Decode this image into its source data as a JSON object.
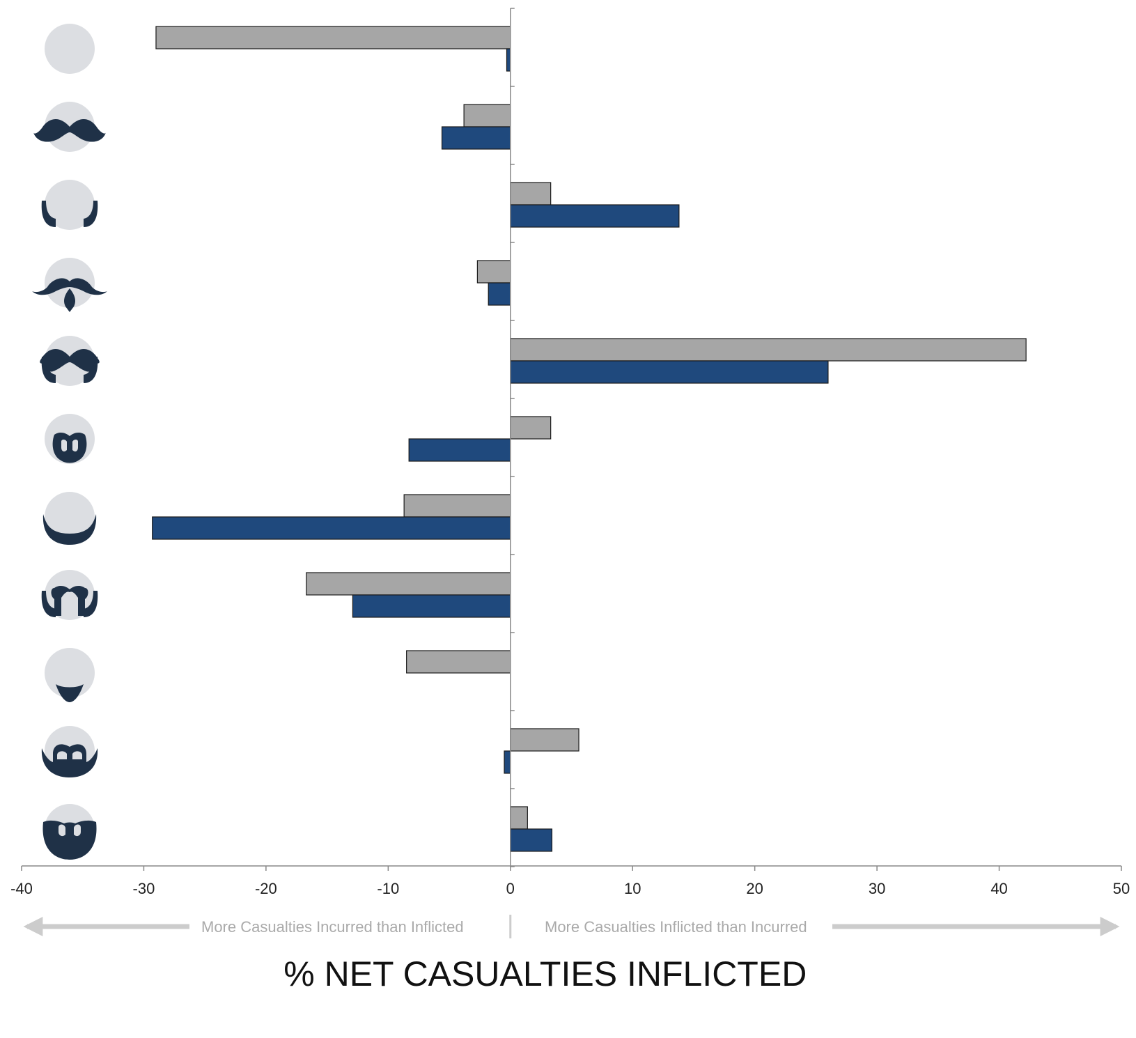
{
  "chart_data": {
    "type": "bar",
    "orientation": "horizontal",
    "categories": [
      "clean-shaven",
      "mustache",
      "sideburns",
      "mustache-and-goatee",
      "mustache-and-sideburns",
      "goatee-with-mustache",
      "chin-beard",
      "mustache-and-chin-curtain",
      "chin-strap",
      "full-beard-short",
      "full-beard"
    ],
    "series": [
      {
        "color": "#a6a6a6",
        "values": [
          -29,
          -3.8,
          3.3,
          -2.7,
          42.2,
          3.3,
          -8.7,
          -16.7,
          -8.5,
          5.6,
          1.4
        ]
      },
      {
        "color": "#1f497d",
        "values": [
          -0.3,
          -5.6,
          13.8,
          -1.8,
          26.0,
          -8.3,
          -29.3,
          -12.9,
          null,
          -0.5,
          3.4
        ]
      }
    ],
    "xlim": [
      -40,
      50
    ],
    "xticks": [
      -40,
      -30,
      -20,
      -10,
      0,
      10,
      20,
      30,
      40,
      50
    ],
    "xtick_labels": [
      "-40",
      "-30",
      "-20",
      "-10",
      "0",
      "10",
      "20",
      "30",
      "40",
      "50"
    ],
    "xlabel": "% NET CASUALTIES INFLICTED",
    "annotations": {
      "left": "More Casualties Incurred than Inflicted",
      "right": "More Casualties Inflicted than Incurred"
    },
    "grid": false,
    "legend": "none"
  },
  "colors": {
    "face": "#dcdee2",
    "hair": "#1f3147",
    "axis": "#888888",
    "annotation_text": "#aaaaaa",
    "annotation_arrow": "#cccccc"
  },
  "icons": [
    "clean-shaven-face-icon",
    "mustache-face-icon",
    "sideburns-face-icon",
    "mustache-goatee-face-icon",
    "mustache-sideburns-face-icon",
    "goatee-face-icon",
    "chin-beard-face-icon",
    "chin-curtain-mustache-face-icon",
    "chin-strap-face-icon",
    "short-beard-face-icon",
    "full-beard-face-icon"
  ]
}
